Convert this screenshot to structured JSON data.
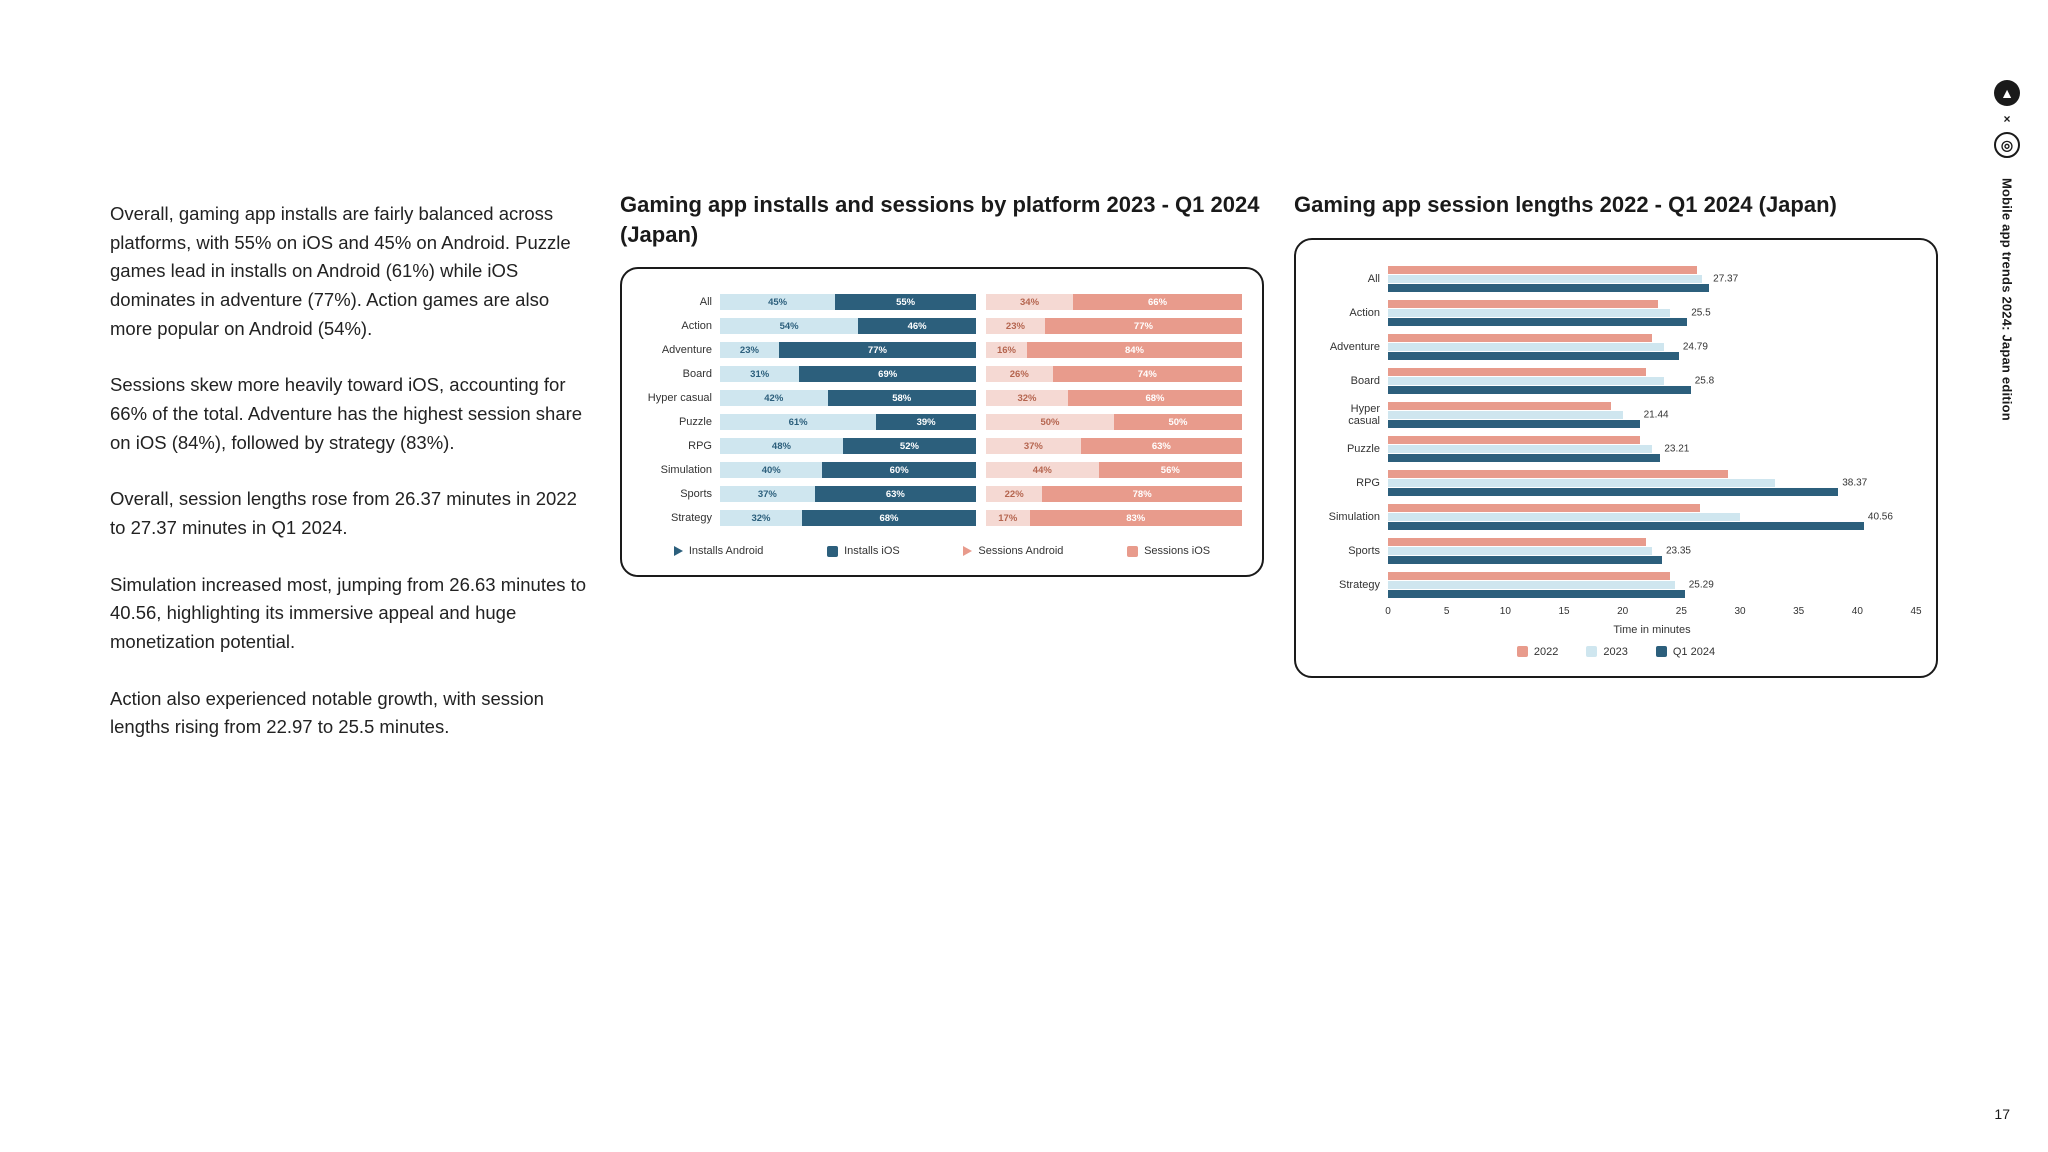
{
  "page_number": "17",
  "side_label": "Mobile app trends 2024: Japan edition",
  "text": {
    "p1": "Overall, gaming app installs are fairly balanced across platforms, with 55% on iOS and 45% on Android. Puzzle games lead in installs on Android (61%) while iOS dominates in adventure (77%). Action games are also more popular on Android (54%).",
    "p2": "Sessions skew more heavily toward iOS, accounting for 66% of the total. Adventure has the highest session share on iOS (84%), followed by strategy (83%).",
    "p3": "Overall, session lengths rose from 26.37 minutes in 2022 to 27.37 minutes in Q1 2024.",
    "p4": "Simulation increased most, jumping from 26.63 minutes to 40.56, highlighting its immersive appeal and huge monetization potential.",
    "p5": "Action also experienced notable growth, with session lengths rising from 22.97 to 25.5 minutes."
  },
  "chart1": {
    "title": "Gaming app installs and sessions by platform 2023 - Q1 2024 (Japan)",
    "type": "stacked-bar-horizontal",
    "colors": {
      "installs_android": "#cfe6ef",
      "installs_ios": "#2c5f7c",
      "sessions_android": "#f5d9d3",
      "sessions_ios": "#e89b8c",
      "text_light": "#2c5f7c",
      "text_dark": "#ffffff",
      "text_sess_light": "#b5654f",
      "text_sess_dark": "#ffffff"
    },
    "categories": [
      "All",
      "Action",
      "Adventure",
      "Board",
      "Hyper casual",
      "Puzzle",
      "RPG",
      "Simulation",
      "Sports",
      "Strategy"
    ],
    "installs_android": [
      45,
      54,
      23,
      31,
      42,
      61,
      48,
      40,
      37,
      32
    ],
    "installs_ios": [
      55,
      46,
      77,
      69,
      58,
      39,
      52,
      60,
      63,
      68
    ],
    "sessions_android": [
      34,
      23,
      16,
      26,
      32,
      50,
      37,
      44,
      22,
      17
    ],
    "sessions_ios": [
      66,
      77,
      84,
      74,
      68,
      50,
      63,
      56,
      78,
      83
    ],
    "legend": {
      "l1": "Installs Android",
      "l2": "Installs iOS",
      "l3": "Sessions Android",
      "l4": "Sessions iOS"
    }
  },
  "chart2": {
    "title": "Gaming app session lengths 2022 - Q1 2024 (Japan)",
    "type": "grouped-bar-horizontal",
    "xlabel": "Time in minutes",
    "xmax": 45,
    "xticks": [
      0,
      5,
      10,
      15,
      20,
      25,
      30,
      35,
      40,
      45
    ],
    "colors": {
      "c2022": "#e89b8c",
      "c2023": "#cfe6ef",
      "c2024": "#2c5f7c"
    },
    "categories": [
      "All",
      "Action",
      "Adventure",
      "Board",
      "Hyper casual",
      "Puzzle",
      "RPG",
      "Simulation",
      "Sports",
      "Strategy"
    ],
    "end_labels": [
      27.37,
      25.5,
      24.79,
      25.8,
      21.44,
      23.21,
      38.37,
      40.56,
      23.35,
      25.29
    ],
    "v2022": [
      26.37,
      22.97,
      22.5,
      22.0,
      19.0,
      21.5,
      29.0,
      26.63,
      22.0,
      24.0
    ],
    "v2023": [
      26.8,
      24.0,
      23.5,
      23.5,
      20.0,
      22.5,
      33.0,
      30.0,
      22.5,
      24.5
    ],
    "v2024": [
      27.37,
      25.5,
      24.79,
      25.8,
      21.44,
      23.21,
      38.37,
      40.56,
      23.35,
      25.29
    ],
    "legend": {
      "l1": "2022",
      "l2": "2023",
      "l3": "Q1 2024"
    }
  }
}
